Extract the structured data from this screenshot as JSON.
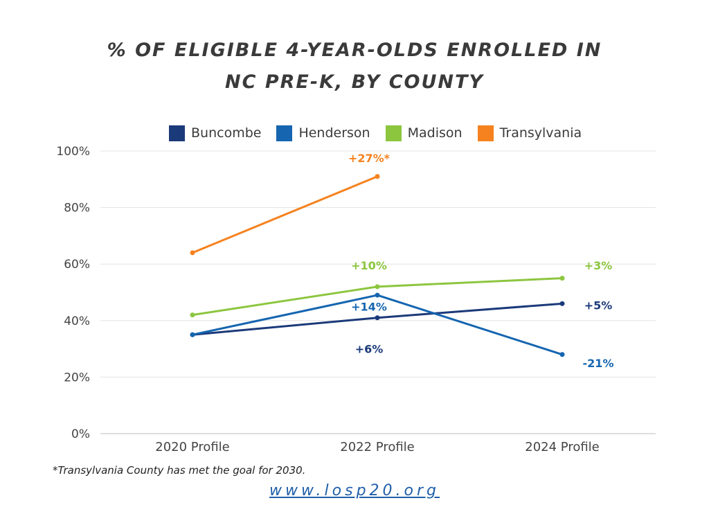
{
  "title_lines": [
    "% OF ELIGIBLE 4-YEAR-OLDS ENROLLED IN",
    "NC PRE-K, BY COUNTY"
  ],
  "footnote": "*Transylvania County has met the goal for 2030.",
  "website": "www.losp20.org",
  "chart_data": {
    "type": "line",
    "x": [
      "2020 Profile",
      "2022 Profile",
      "2024 Profile"
    ],
    "ylim": [
      0,
      100
    ],
    "yticks": [
      0,
      20,
      40,
      60,
      80,
      100
    ],
    "ytick_labels": [
      "0%",
      "20%",
      "40%",
      "60%",
      "80%",
      "100%"
    ],
    "grid": true,
    "legend_position": "top",
    "series": [
      {
        "name": "Buncombe",
        "color": "#1b3a7a",
        "values": [
          35,
          41,
          46
        ],
        "annotations": [
          {
            "label": "+6%",
            "x_index": 1,
            "y": 30
          },
          {
            "label": "+5%",
            "x_index": 2,
            "y": 45.5
          }
        ]
      },
      {
        "name": "Henderson",
        "color": "#1565b0",
        "values": [
          35,
          49,
          28
        ],
        "annotations": [
          {
            "label": "+14%",
            "x_index": 1,
            "y": 45
          },
          {
            "label": "-21%",
            "x_index": 2,
            "y": 25
          }
        ]
      },
      {
        "name": "Madison",
        "color": "#8cc63f",
        "values": [
          42,
          52,
          55
        ],
        "annotations": [
          {
            "label": "+10%",
            "x_index": 1,
            "y": 59.5
          },
          {
            "label": "+3%",
            "x_index": 2,
            "y": 59.5
          }
        ]
      },
      {
        "name": "Transylvania",
        "color": "#f5821f",
        "values": [
          64,
          91,
          null
        ],
        "annotations": [
          {
            "label": "+27%*",
            "x_index": 1,
            "y": 97.5
          }
        ]
      }
    ]
  }
}
